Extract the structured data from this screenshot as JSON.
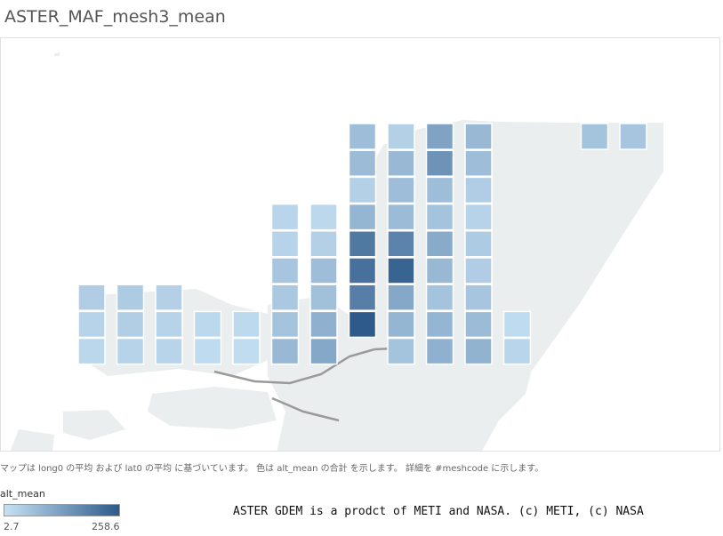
{
  "title": "ASTER_MAF_mesh3_mean",
  "caption": "マップは long0 の平均 および lat0 の平均 に基づいています。 色は alt_mean の合計 を示します。 詳細を #meshcode に示します。",
  "legend": {
    "title": "alt_mean",
    "min": "2.7",
    "max": "258.6",
    "min_value": 2.7,
    "max_value": 258.6,
    "color_low": "#c6e1f4",
    "color_high": "#2d5a8a"
  },
  "credit": "ASTER GDEM is a prodct of METI and NASA. (c) METI, (c) NASA",
  "colors": {
    "land": "#ebeeee",
    "road": "#9a9a9a",
    "cell_border": "#ffffff"
  },
  "mesh_columns": [
    {
      "col": 0,
      "row_start": 6,
      "values": [
        40,
        30,
        22
      ]
    },
    {
      "col": 1,
      "row_start": 6,
      "values": [
        45,
        38,
        30
      ]
    },
    {
      "col": 2,
      "row_start": 6,
      "values": [
        35,
        30,
        28
      ]
    },
    {
      "col": 3,
      "row_start": 7,
      "values": [
        20,
        15
      ]
    },
    {
      "col": 4,
      "row_start": 7,
      "values": [
        18,
        12
      ]
    },
    {
      "col": 5,
      "row_start": 3,
      "values": [
        25,
        30,
        55,
        50,
        60,
        80
      ]
    },
    {
      "col": 6,
      "row_start": 3,
      "values": [
        20,
        35,
        70,
        65,
        95,
        110
      ]
    },
    {
      "col": 7,
      "row_start": 0,
      "values": [
        70,
        75,
        35,
        85,
        200,
        215,
        190,
        258.6
      ]
    },
    {
      "col": 8,
      "row_start": 0,
      "values": [
        35,
        80,
        70,
        75,
        180,
        240,
        110,
        85,
        60
      ]
    },
    {
      "col": 9,
      "row_start": 0,
      "values": [
        120,
        150,
        70,
        60,
        105,
        80,
        60,
        85,
        95
      ]
    },
    {
      "col": 10,
      "row_start": 0,
      "values": [
        80,
        70,
        40,
        30,
        45,
        40,
        55,
        75,
        90
      ]
    },
    {
      "col": 11,
      "row_start": 7,
      "values": [
        15,
        25
      ]
    },
    {
      "col": 13,
      "row_start": 0,
      "values": [
        60
      ]
    },
    {
      "col": 14,
      "row_start": 0,
      "values": [
        55
      ]
    }
  ]
}
